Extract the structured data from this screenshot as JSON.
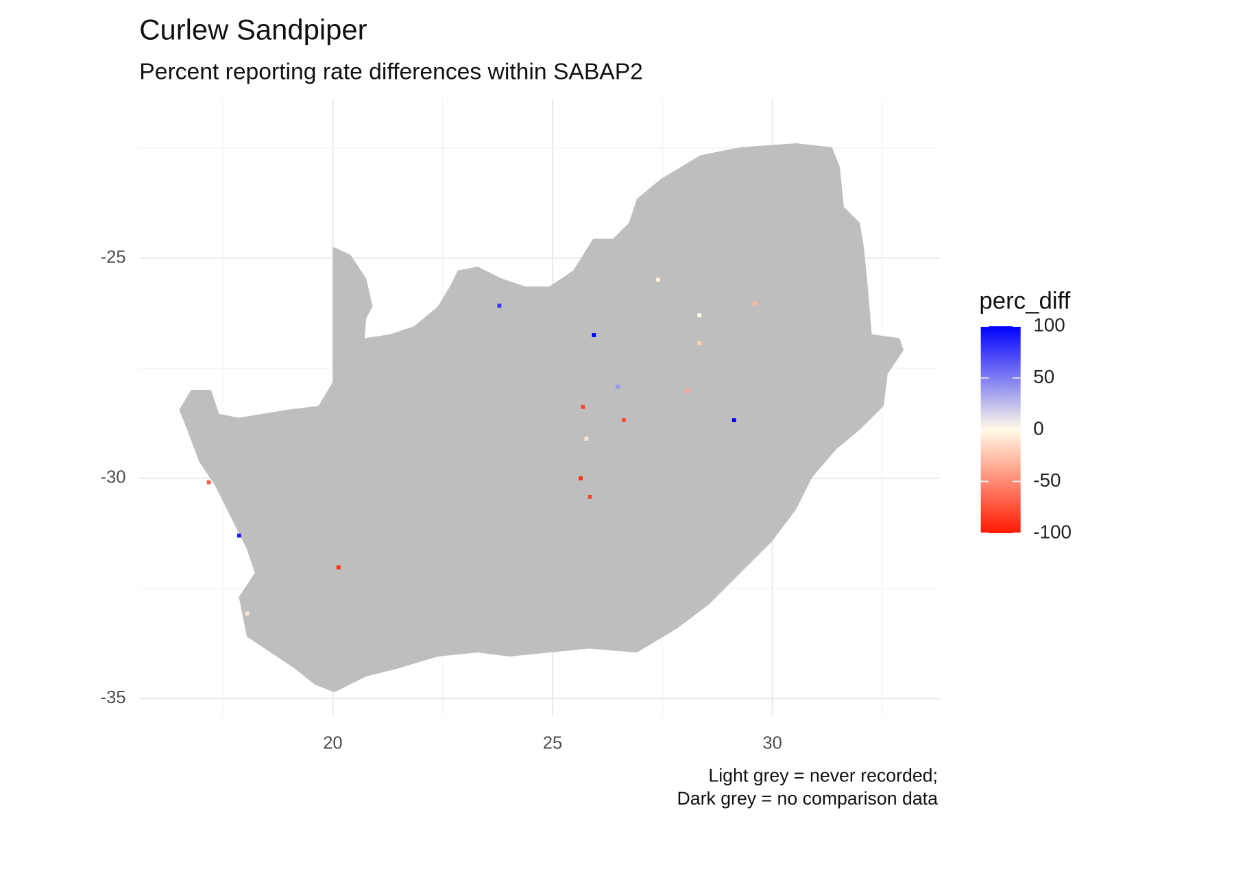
{
  "chart_data": {
    "type": "map",
    "title": "Curlew Sandpiper",
    "subtitle": "Percent reporting rate differences within SABAP2",
    "caption": [
      "Light grey = never recorded;",
      "Dark grey = no comparison data"
    ],
    "xlim": [
      15.6,
      33.8
    ],
    "ylim": [
      -35.4,
      -21.4
    ],
    "xticks": [
      20,
      25,
      30
    ],
    "yticks": [
      -25,
      -30,
      -35
    ],
    "grid": true,
    "land_color": "#bebebe",
    "legend": {
      "title": "perc_diff",
      "ticks": [
        100,
        50,
        0,
        -50,
        -100
      ],
      "lim": [
        -100,
        100
      ],
      "low": "#ff1a00",
      "mid": "#fffbe6",
      "high": "#0000ff"
    },
    "points": [
      {
        "lon": 25.94,
        "lat": -26.75,
        "value": 100
      },
      {
        "lon": 29.13,
        "lat": -28.68,
        "value": 100
      },
      {
        "lon": 25.69,
        "lat": -28.38,
        "value": -80
      },
      {
        "lon": 26.62,
        "lat": -28.68,
        "value": -80
      },
      {
        "lon": 25.64,
        "lat": -30.0,
        "value": -90
      },
      {
        "lon": 25.85,
        "lat": -30.42,
        "value": -80
      },
      {
        "lon": 20.13,
        "lat": -32.02,
        "value": -90
      },
      {
        "lon": 17.87,
        "lat": -31.3,
        "value": 90
      },
      {
        "lon": 17.18,
        "lat": -30.09,
        "value": -70
      },
      {
        "lon": 23.79,
        "lat": -26.08,
        "value": 80
      },
      {
        "lon": 28.34,
        "lat": -26.93,
        "value": -20
      },
      {
        "lon": 29.6,
        "lat": -26.03,
        "value": -30
      },
      {
        "lon": 28.07,
        "lat": -28.01,
        "value": -40
      },
      {
        "lon": 26.48,
        "lat": -27.92,
        "value": 40
      },
      {
        "lon": 25.77,
        "lat": -29.1,
        "value": -10
      },
      {
        "lon": 27.4,
        "lat": -25.49,
        "value": -5
      },
      {
        "lon": 18.05,
        "lat": -33.07,
        "value": -10
      },
      {
        "lon": 28.34,
        "lat": -26.3,
        "value": 0
      }
    ]
  }
}
